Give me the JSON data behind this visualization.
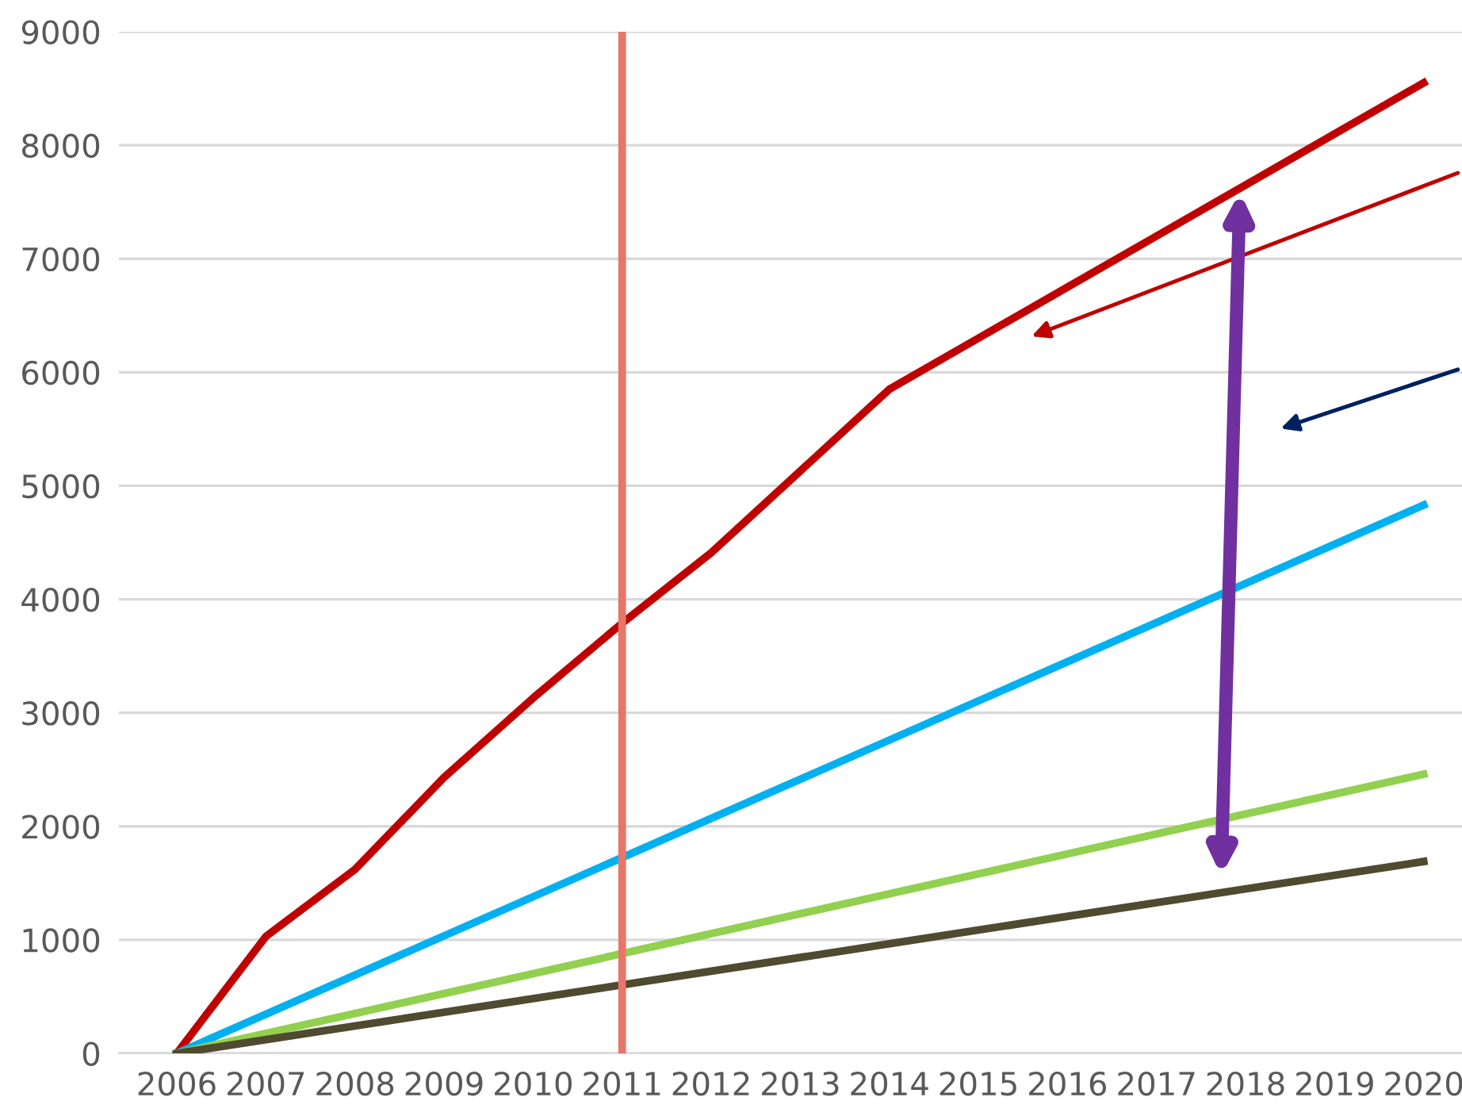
{
  "chart_data": {
    "type": "line",
    "series": [
      {
        "color": "#c00000",
        "x": [
          2006,
          2007,
          2008,
          2009,
          2010,
          2011,
          2012,
          2013,
          2014,
          2015,
          2016,
          2017,
          2018,
          2019,
          2020
        ],
        "values": [
          0,
          1030,
          1620,
          2430,
          3130,
          3790,
          4410,
          5130,
          5850,
          6300,
          6750,
          7200,
          7650,
          8100,
          8550
        ]
      },
      {
        "color": "#00b0f0",
        "x": [
          2006,
          2020
        ],
        "values": [
          0,
          4830
        ]
      },
      {
        "color": "#92d050",
        "x": [
          2006,
          2020
        ],
        "values": [
          0,
          2460
        ]
      },
      {
        "color": "#4f4a30",
        "x": [
          2006,
          2020
        ],
        "values": [
          0,
          1690
        ]
      }
    ],
    "xlim": [
      2005.35,
      2020.43
    ],
    "xticks": [
      2006,
      2007,
      2008,
      2009,
      2010,
      2011,
      2012,
      2013,
      2014,
      2015,
      2016,
      2017,
      2018,
      2019,
      2020
    ],
    "ylim": [
      0,
      9000
    ],
    "yticks": [
      0,
      1000,
      2000,
      3000,
      4000,
      5000,
      6000,
      7000,
      8000,
      9000
    ],
    "grid": "y",
    "ref_lines": [
      {
        "axis": "x",
        "value": 2011,
        "color": "#e8756a"
      }
    ]
  }
}
